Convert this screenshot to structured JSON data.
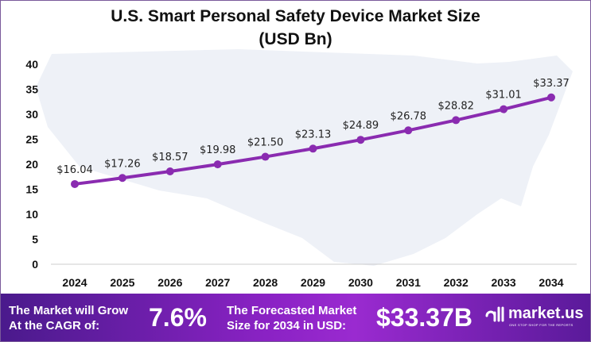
{
  "title_line1": "U.S. Smart Personal Safety Device Market Size",
  "title_line2": "(USD Bn)",
  "chart_data": {
    "type": "line",
    "title": "U.S. Smart Personal Safety Device Market Size (USD Bn)",
    "categories": [
      "2024",
      "2025",
      "2026",
      "2027",
      "2028",
      "2029",
      "2030",
      "2031",
      "2032",
      "2033",
      "2034"
    ],
    "values": [
      16.04,
      17.26,
      18.57,
      19.98,
      21.5,
      23.13,
      24.89,
      26.78,
      28.82,
      31.01,
      33.37
    ],
    "data_labels": [
      "$16.04",
      "$17.26",
      "$18.57",
      "$19.98",
      "$21.50",
      "$23.13",
      "$24.89",
      "$26.78",
      "$28.82",
      "$31.01",
      "$33.37"
    ],
    "ylim": [
      0,
      40
    ],
    "yticks": [
      0,
      5,
      10,
      15,
      20,
      25,
      30,
      35,
      40
    ],
    "grid": false,
    "line_color": "#8a2bb0"
  },
  "footer": {
    "cagr_label_line1": "The Market will Grow",
    "cagr_label_line2": "At the CAGR of:",
    "cagr_value": "7.6%",
    "forecast_label_line1": "The Forecasted Market",
    "forecast_label_line2": "Size for 2034 in USD:",
    "forecast_value": "$33.37B",
    "logo_name": "market.us",
    "logo_tagline": "ONE STOP SHOP FOR THE REPORTS"
  }
}
